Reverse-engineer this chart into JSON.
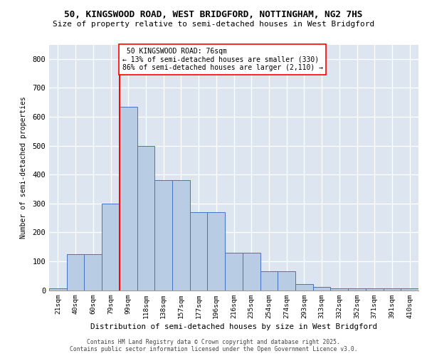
{
  "title_line1": "50, KINGSWOOD ROAD, WEST BRIDGFORD, NOTTINGHAM, NG2 7HS",
  "title_line2": "Size of property relative to semi-detached houses in West Bridgford",
  "xlabel": "Distribution of semi-detached houses by size in West Bridgford",
  "ylabel": "Number of semi-detached properties",
  "categories": [
    "21sqm",
    "40sqm",
    "60sqm",
    "79sqm",
    "99sqm",
    "118sqm",
    "138sqm",
    "157sqm",
    "177sqm",
    "196sqm",
    "216sqm",
    "235sqm",
    "254sqm",
    "274sqm",
    "293sqm",
    "313sqm",
    "332sqm",
    "352sqm",
    "371sqm",
    "391sqm",
    "410sqm"
  ],
  "values": [
    7,
    125,
    125,
    300,
    635,
    500,
    380,
    380,
    270,
    270,
    130,
    130,
    65,
    65,
    20,
    10,
    5,
    5,
    5,
    5,
    5
  ],
  "bar_color": "#b8cce4",
  "bar_edge_color": "#4472c4",
  "vline_index": 3,
  "vline_color": "red",
  "property_label": "50 KINGSWOOD ROAD: 76sqm",
  "pct_smaller": 13,
  "n_smaller": 330,
  "pct_larger": 86,
  "n_larger": 2110,
  "ylim": [
    0,
    850
  ],
  "yticks": [
    0,
    100,
    200,
    300,
    400,
    500,
    600,
    700,
    800
  ],
  "bg_color": "#dde6f0",
  "footer_line1": "Contains HM Land Registry data © Crown copyright and database right 2025.",
  "footer_line2": "Contains public sector information licensed under the Open Government Licence v3.0."
}
